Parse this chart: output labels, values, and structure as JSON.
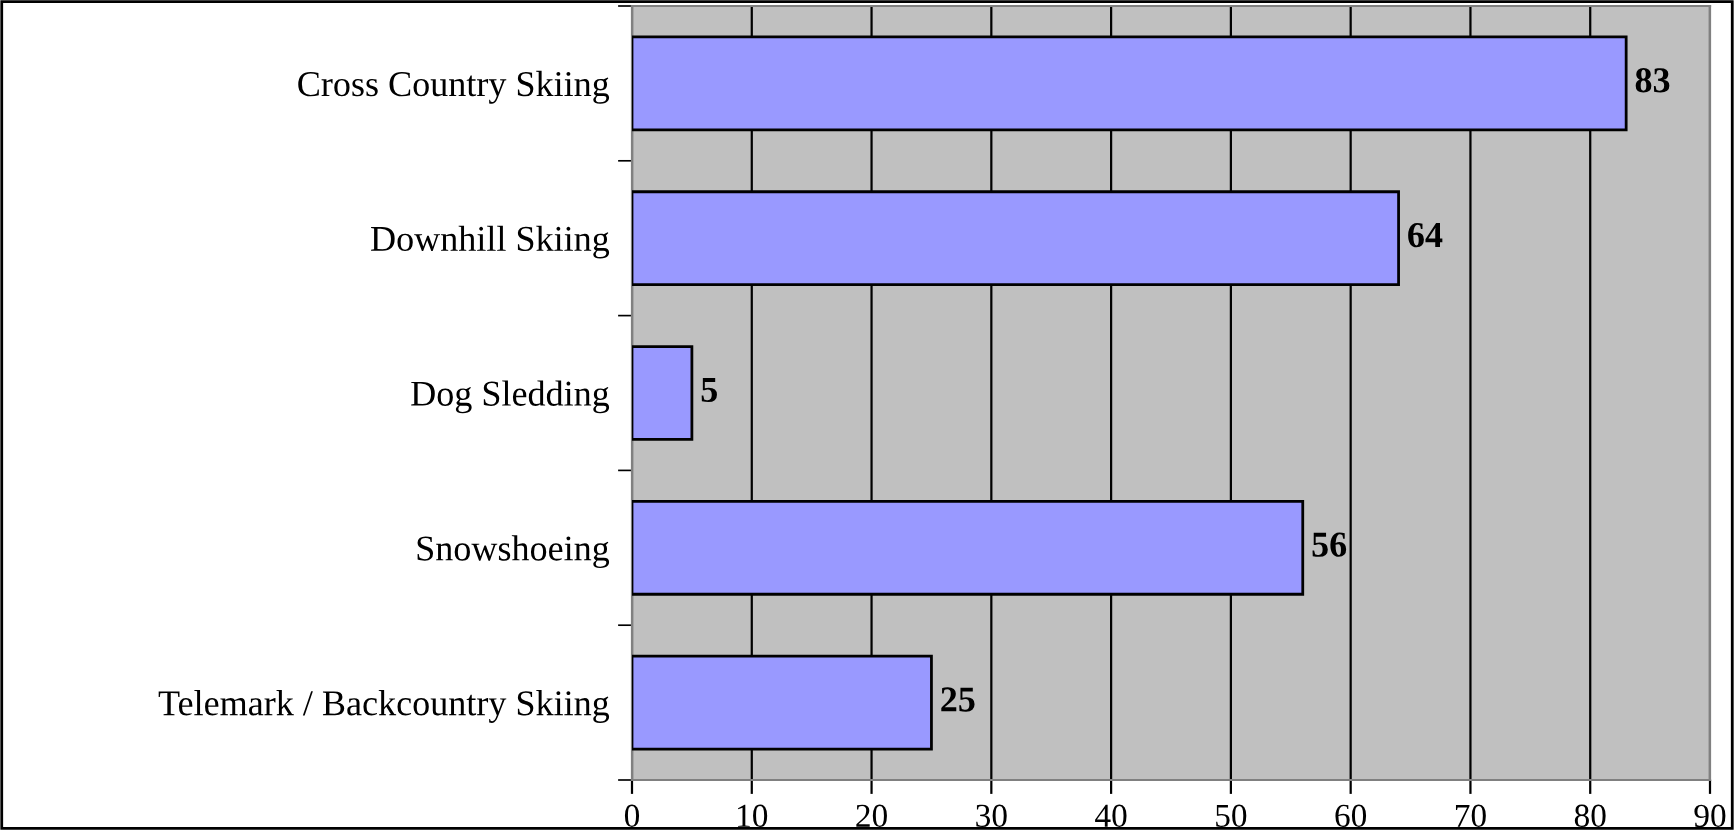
{
  "chart_data": {
    "type": "bar",
    "orientation": "horizontal",
    "categories": [
      "Cross Country Skiing",
      "Downhill Skiing",
      "Dog Sledding",
      "Snowshoeing",
      "Telemark / Backcountry Skiing"
    ],
    "values": [
      83,
      64,
      5,
      56,
      25
    ],
    "color": "#9999ff",
    "xlim": [
      0,
      90
    ],
    "xticks": [
      0,
      10,
      20,
      30,
      40,
      50,
      60,
      70,
      80,
      90
    ],
    "grid": "x",
    "data_labels": true,
    "legend": false
  }
}
